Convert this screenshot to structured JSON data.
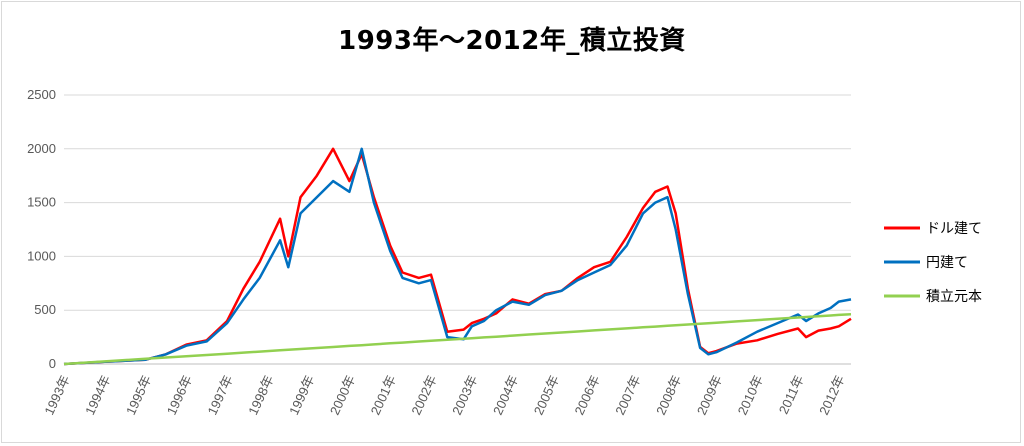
{
  "chart_data": {
    "type": "line",
    "title": "1993年～2012年_積立投資",
    "xlabel": "",
    "ylabel": "",
    "ylim": [
      0,
      2500
    ],
    "yticks": [
      0,
      500,
      1000,
      1500,
      2000,
      2500
    ],
    "grid": true,
    "legend_position": "right",
    "x_categories": [
      "1993年",
      "1994年",
      "1995年",
      "1996年",
      "1997年",
      "1998年",
      "1999年",
      "2000年",
      "2001年",
      "2002年",
      "2003年",
      "2004年",
      "2005年",
      "2006年",
      "2007年",
      "2008年",
      "2009年",
      "2010年",
      "2011年",
      "2012年"
    ],
    "x_points": [
      1993.0,
      1994.0,
      1995.0,
      1995.5,
      1996.0,
      1996.5,
      1997.0,
      1997.4,
      1997.8,
      1998.3,
      1998.5,
      1998.8,
      1999.2,
      1999.6,
      2000.0,
      2000.3,
      2000.6,
      2001.0,
      2001.3,
      2001.7,
      2002.0,
      2002.4,
      2002.8,
      2003.0,
      2003.3,
      2003.6,
      2004.0,
      2004.4,
      2004.8,
      2005.2,
      2005.6,
      2006.0,
      2006.4,
      2006.8,
      2007.2,
      2007.5,
      2007.8,
      2008.0,
      2008.3,
      2008.6,
      2008.8,
      2009.0,
      2009.5,
      2010.0,
      2010.5,
      2011.0,
      2011.2,
      2011.5,
      2011.8,
      2012.0,
      2012.3
    ],
    "series": [
      {
        "name": "ドル建て",
        "color": "#ff0000",
        "values": [
          0,
          20,
          40,
          90,
          180,
          220,
          400,
          700,
          950,
          1350,
          1000,
          1550,
          1750,
          2000,
          1700,
          1950,
          1550,
          1100,
          850,
          800,
          830,
          300,
          320,
          380,
          420,
          470,
          600,
          560,
          650,
          680,
          800,
          900,
          950,
          1180,
          1450,
          1600,
          1650,
          1400,
          700,
          160,
          100,
          120,
          190,
          220,
          280,
          330,
          250,
          310,
          330,
          350,
          420
        ]
      },
      {
        "name": "円建て",
        "color": "#0070c0",
        "values": [
          0,
          20,
          40,
          90,
          170,
          210,
          380,
          600,
          800,
          1150,
          900,
          1400,
          1550,
          1700,
          1600,
          2000,
          1500,
          1050,
          800,
          750,
          780,
          250,
          230,
          350,
          400,
          500,
          580,
          550,
          640,
          680,
          780,
          850,
          920,
          1100,
          1400,
          1500,
          1550,
          1250,
          650,
          150,
          90,
          110,
          200,
          300,
          380,
          460,
          400,
          470,
          520,
          580,
          600
        ]
      },
      {
        "name": "積立元本",
        "color": "#92d050",
        "values": [
          0,
          24,
          48,
          60,
          72,
          84,
          96,
          106,
          115,
          127,
          132,
          139,
          149,
          158,
          168,
          175,
          182,
          192,
          199,
          209,
          216,
          226,
          235,
          240,
          247,
          254,
          264,
          274,
          283,
          293,
          302,
          312,
          322,
          331,
          341,
          348,
          355,
          360,
          367,
          374,
          379,
          384,
          396,
          408,
          420,
          432,
          437,
          444,
          451,
          456,
          463
        ]
      }
    ]
  }
}
